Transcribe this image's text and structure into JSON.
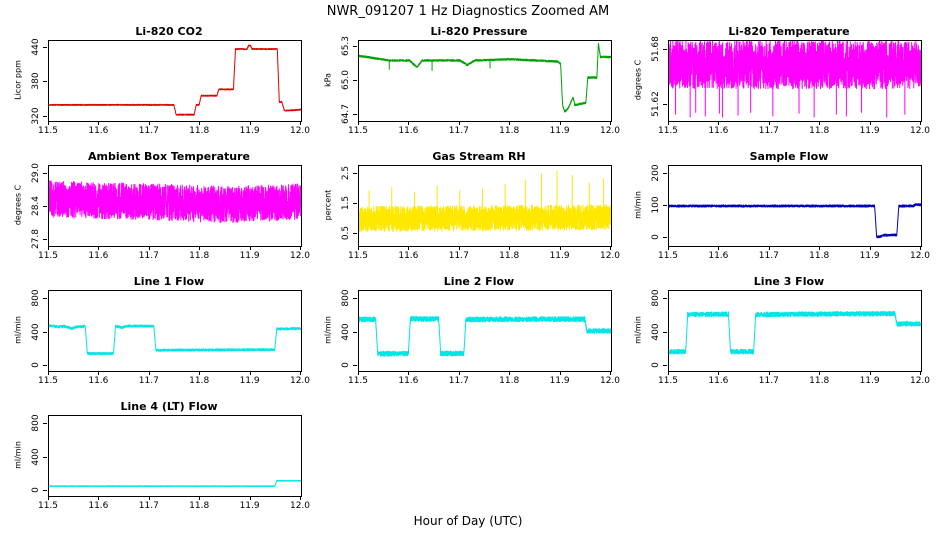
{
  "page": {
    "title": "NWR_091207  1 Hz Diagnostics Zoomed AM",
    "global_xlabel": "Hour of Day (UTC)",
    "background": "#ffffff"
  },
  "axis_x": {
    "range": [
      11.5,
      12.0
    ],
    "tick_values": [
      11.5,
      11.6,
      11.7,
      11.8,
      11.9,
      12.0
    ],
    "tick_labels": [
      "11.5",
      "11.6",
      "11.7",
      "11.8",
      "11.9",
      "12.0"
    ]
  },
  "layout": {
    "grid": false,
    "legend": null,
    "rows": 4,
    "cols": 3
  },
  "chart_data": [
    {
      "type": "line",
      "title": "Li-820 CO2",
      "ylabel": "Licor ppm",
      "color": "#e00000",
      "xlim": [
        11.5,
        12.0
      ],
      "ylim": [
        313,
        452
      ],
      "ytick_values": [
        320,
        380,
        440
      ],
      "ytick_labels": [
        "320",
        "380",
        "440"
      ],
      "noise": 1.0,
      "waypoints": [
        [
          11.5,
          341
        ],
        [
          11.748,
          341
        ],
        [
          11.752,
          324
        ],
        [
          11.788,
          324
        ],
        [
          11.792,
          341
        ],
        [
          11.798,
          341
        ],
        [
          11.802,
          357
        ],
        [
          11.833,
          357
        ],
        [
          11.837,
          368
        ],
        [
          11.866,
          368
        ],
        [
          11.87,
          438
        ],
        [
          11.893,
          438
        ],
        [
          11.896,
          444
        ],
        [
          11.9,
          444
        ],
        [
          11.903,
          438
        ],
        [
          11.953,
          438
        ],
        [
          11.957,
          346
        ],
        [
          11.962,
          346
        ],
        [
          11.967,
          331
        ],
        [
          11.99,
          332
        ],
        [
          12.0,
          333
        ]
      ],
      "spikes": []
    },
    {
      "type": "line",
      "title": "Li-820 Pressure",
      "ylabel": "kPa",
      "color": "#00a000",
      "xlim": [
        11.5,
        12.0
      ],
      "ylim": [
        64.65,
        65.35
      ],
      "ytick_values": [
        64.7,
        65.0,
        65.3
      ],
      "ytick_labels": [
        "64.7",
        "65.0",
        "65.3"
      ],
      "noise": 0.008,
      "waypoints": [
        [
          11.5,
          65.22
        ],
        [
          11.53,
          65.2
        ],
        [
          11.56,
          65.18
        ],
        [
          11.6,
          65.18
        ],
        [
          11.615,
          65.12
        ],
        [
          11.625,
          65.18
        ],
        [
          11.7,
          65.18
        ],
        [
          11.715,
          65.14
        ],
        [
          11.73,
          65.18
        ],
        [
          11.8,
          65.19
        ],
        [
          11.85,
          65.18
        ],
        [
          11.895,
          65.17
        ],
        [
          11.9,
          65.15
        ],
        [
          11.904,
          64.79
        ],
        [
          11.908,
          64.73
        ],
        [
          11.915,
          64.76
        ],
        [
          11.925,
          64.86
        ],
        [
          11.928,
          64.79
        ],
        [
          11.95,
          64.81
        ],
        [
          11.954,
          65.03
        ],
        [
          11.972,
          65.03
        ],
        [
          11.975,
          65.33
        ],
        [
          11.979,
          65.21
        ],
        [
          12.0,
          65.21
        ]
      ],
      "spikes": [
        [
          11.56,
          65.1
        ],
        [
          11.645,
          65.09
        ],
        [
          11.76,
          65.11
        ]
      ]
    },
    {
      "type": "line",
      "title": "Li-820 Temperature",
      "ylabel": "degrees C",
      "color": "#ff00ff",
      "xlim": [
        11.5,
        12.0
      ],
      "ylim": [
        51.603,
        51.69
      ],
      "ytick_values": [
        51.62,
        51.68
      ],
      "ytick_labels": [
        "51.62",
        "51.68"
      ],
      "noise": 0.026,
      "waypoints": [
        [
          11.5,
          51.664
        ],
        [
          12.0,
          51.664
        ]
      ],
      "spikes": [
        [
          11.513,
          51.61
        ],
        [
          11.542,
          51.607
        ],
        [
          11.553,
          51.612
        ],
        [
          11.572,
          51.608
        ],
        [
          11.6,
          51.611
        ],
        [
          11.606,
          51.607
        ],
        [
          11.637,
          51.609
        ],
        [
          11.662,
          51.612
        ],
        [
          11.706,
          51.608
        ],
        [
          11.758,
          51.611
        ],
        [
          11.788,
          51.607
        ],
        [
          11.832,
          51.61
        ],
        [
          11.852,
          51.608
        ],
        [
          11.882,
          51.612
        ],
        [
          11.932,
          51.607
        ],
        [
          11.968,
          51.61
        ]
      ]
    },
    {
      "type": "line",
      "title": "Ambient Box Temperature",
      "ylabel": "degrees C",
      "color": "#ff00ff",
      "xlim": [
        11.5,
        12.0
      ],
      "ylim": [
        27.7,
        29.15
      ],
      "ytick_values": [
        27.8,
        28.4,
        29.0
      ],
      "ytick_labels": [
        "27.8",
        "28.4",
        "29.0"
      ],
      "noise": 0.33,
      "waypoints": [
        [
          11.5,
          28.55
        ],
        [
          11.7,
          28.5
        ],
        [
          11.85,
          28.45
        ],
        [
          12.0,
          28.5
        ]
      ],
      "spikes": []
    },
    {
      "type": "line",
      "title": "Gas Stream RH",
      "ylabel": "percent",
      "color": "#ffe800",
      "xlim": [
        11.5,
        12.0
      ],
      "ylim": [
        0.1,
        2.75
      ],
      "ytick_values": [
        0.5,
        1.5,
        2.5
      ],
      "ytick_labels": [
        "0.5",
        "1.5",
        "2.5"
      ],
      "noise": 0.42,
      "waypoints": [
        [
          11.5,
          1.0
        ],
        [
          12.0,
          1.05
        ]
      ],
      "spikes": [
        [
          11.52,
          1.95
        ],
        [
          11.565,
          2.05
        ],
        [
          11.61,
          1.9
        ],
        [
          11.655,
          2.1
        ],
        [
          11.7,
          1.95
        ],
        [
          11.745,
          2.0
        ],
        [
          11.79,
          2.15
        ],
        [
          11.83,
          2.3
        ],
        [
          11.862,
          2.5
        ],
        [
          11.893,
          2.6
        ],
        [
          11.923,
          2.45
        ],
        [
          11.957,
          2.2
        ],
        [
          11.985,
          2.35
        ]
      ]
    },
    {
      "type": "line",
      "title": "Sample Flow",
      "ylabel": "ml/min",
      "color": "#0000bb",
      "xlim": [
        11.5,
        12.0
      ],
      "ylim": [
        -25,
        225
      ],
      "ytick_values": [
        0,
        100,
        200
      ],
      "ytick_labels": [
        "0",
        "100",
        "200"
      ],
      "noise": 3.5,
      "waypoints": [
        [
          11.5,
          100
        ],
        [
          11.908,
          100
        ],
        [
          11.912,
          4
        ],
        [
          11.918,
          4
        ],
        [
          11.928,
          9
        ],
        [
          11.952,
          9
        ],
        [
          11.956,
          100
        ],
        [
          11.985,
          100
        ],
        [
          11.988,
          104
        ],
        [
          12.0,
          104
        ]
      ],
      "spikes": []
    },
    {
      "type": "line",
      "title": "Line 1 Flow",
      "ylabel": "ml/min",
      "color": "#00e5e5",
      "xlim": [
        11.5,
        12.0
      ],
      "ylim": [
        -60,
        900
      ],
      "ytick_values": [
        0,
        400,
        800
      ],
      "ytick_labels": [
        "0",
        "400",
        "800"
      ],
      "noise": 14,
      "waypoints": [
        [
          11.5,
          485
        ],
        [
          11.52,
          470
        ],
        [
          11.53,
          478
        ],
        [
          11.545,
          450
        ],
        [
          11.555,
          470
        ],
        [
          11.572,
          475
        ],
        [
          11.576,
          150
        ],
        [
          11.628,
          150
        ],
        [
          11.632,
          480
        ],
        [
          11.645,
          462
        ],
        [
          11.655,
          480
        ],
        [
          11.708,
          478
        ],
        [
          11.712,
          190
        ],
        [
          11.8,
          192
        ],
        [
          11.9,
          195
        ],
        [
          11.948,
          196
        ],
        [
          11.952,
          445
        ],
        [
          12.0,
          448
        ]
      ],
      "spikes": []
    },
    {
      "type": "line",
      "title": "Line 2 Flow",
      "ylabel": "ml/min",
      "color": "#00e5e5",
      "xlim": [
        11.5,
        12.0
      ],
      "ylim": [
        -60,
        900
      ],
      "ytick_values": [
        0,
        400,
        800
      ],
      "ytick_labels": [
        "0",
        "400",
        "800"
      ],
      "noise": 30,
      "waypoints": [
        [
          11.5,
          560
        ],
        [
          11.533,
          560
        ],
        [
          11.537,
          148
        ],
        [
          11.598,
          148
        ],
        [
          11.602,
          565
        ],
        [
          11.658,
          565
        ],
        [
          11.662,
          150
        ],
        [
          11.708,
          150
        ],
        [
          11.712,
          558
        ],
        [
          11.85,
          562
        ],
        [
          11.948,
          562
        ],
        [
          11.952,
          420
        ],
        [
          12.0,
          420
        ]
      ],
      "spikes": []
    },
    {
      "type": "line",
      "title": "Line 3 Flow",
      "ylabel": "ml/min",
      "color": "#00e5e5",
      "xlim": [
        11.5,
        12.0
      ],
      "ylim": [
        -60,
        900
      ],
      "ytick_values": [
        0,
        400,
        800
      ],
      "ytick_labels": [
        "0",
        "400",
        "800"
      ],
      "noise": 28,
      "waypoints": [
        [
          11.5,
          172
        ],
        [
          11.533,
          172
        ],
        [
          11.537,
          618
        ],
        [
          11.618,
          622
        ],
        [
          11.622,
          172
        ],
        [
          11.668,
          172
        ],
        [
          11.672,
          618
        ],
        [
          11.85,
          625
        ],
        [
          11.948,
          628
        ],
        [
          11.952,
          505
        ],
        [
          12.0,
          508
        ]
      ],
      "spikes": []
    },
    {
      "type": "line",
      "title": "Line 4 (LT) Flow",
      "ylabel": "ml/min",
      "color": "#00e5e5",
      "xlim": [
        11.5,
        12.0
      ],
      "ylim": [
        -60,
        900
      ],
      "ytick_values": [
        0,
        400,
        800
      ],
      "ytick_labels": [
        "0",
        "400",
        "800"
      ],
      "noise": 5,
      "waypoints": [
        [
          11.5,
          58
        ],
        [
          11.948,
          58
        ],
        [
          11.952,
          122
        ],
        [
          12.0,
          122
        ]
      ],
      "spikes": []
    }
  ]
}
